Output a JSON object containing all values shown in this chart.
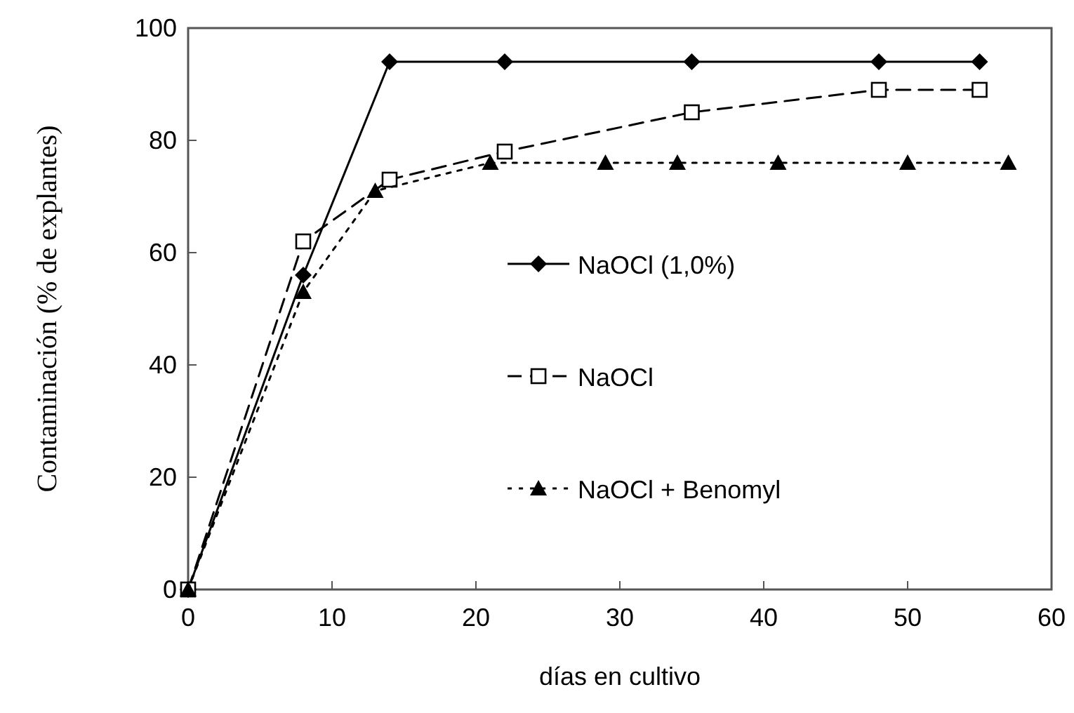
{
  "chart_data": {
    "type": "line",
    "xlabel": "días en cultivo",
    "ylabel": "Contaminación (% de explantes)",
    "xlim": [
      0,
      60
    ],
    "xticks": [
      0,
      10,
      20,
      30,
      40,
      50,
      60
    ],
    "ylim": [
      0,
      100
    ],
    "yticks": [
      0,
      20,
      40,
      60,
      80,
      100
    ],
    "grid": false,
    "legend": "right",
    "series": [
      {
        "name": "NaOCl (1,0%)",
        "color": "#000000",
        "marker": "diamond",
        "line_style": "solid",
        "x": [
          0,
          8,
          14,
          22,
          35,
          48,
          55
        ],
        "values": [
          0,
          56,
          94,
          94,
          94,
          94,
          94
        ]
      },
      {
        "name": "NaOCl",
        "color": "#000000",
        "marker": "square",
        "line_style": "dashed",
        "x": [
          0,
          8,
          14,
          22,
          35,
          48,
          55
        ],
        "values": [
          0,
          62,
          73,
          78,
          85,
          89,
          89
        ]
      },
      {
        "name": "NaOCl + Benomyl",
        "color": "#000000",
        "marker": "triangle",
        "line_style": "dotted",
        "x": [
          0,
          8,
          13,
          21,
          29,
          34,
          41,
          50,
          57
        ],
        "values": [
          0,
          53,
          71,
          76,
          76,
          76,
          76,
          76,
          76
        ]
      }
    ]
  }
}
